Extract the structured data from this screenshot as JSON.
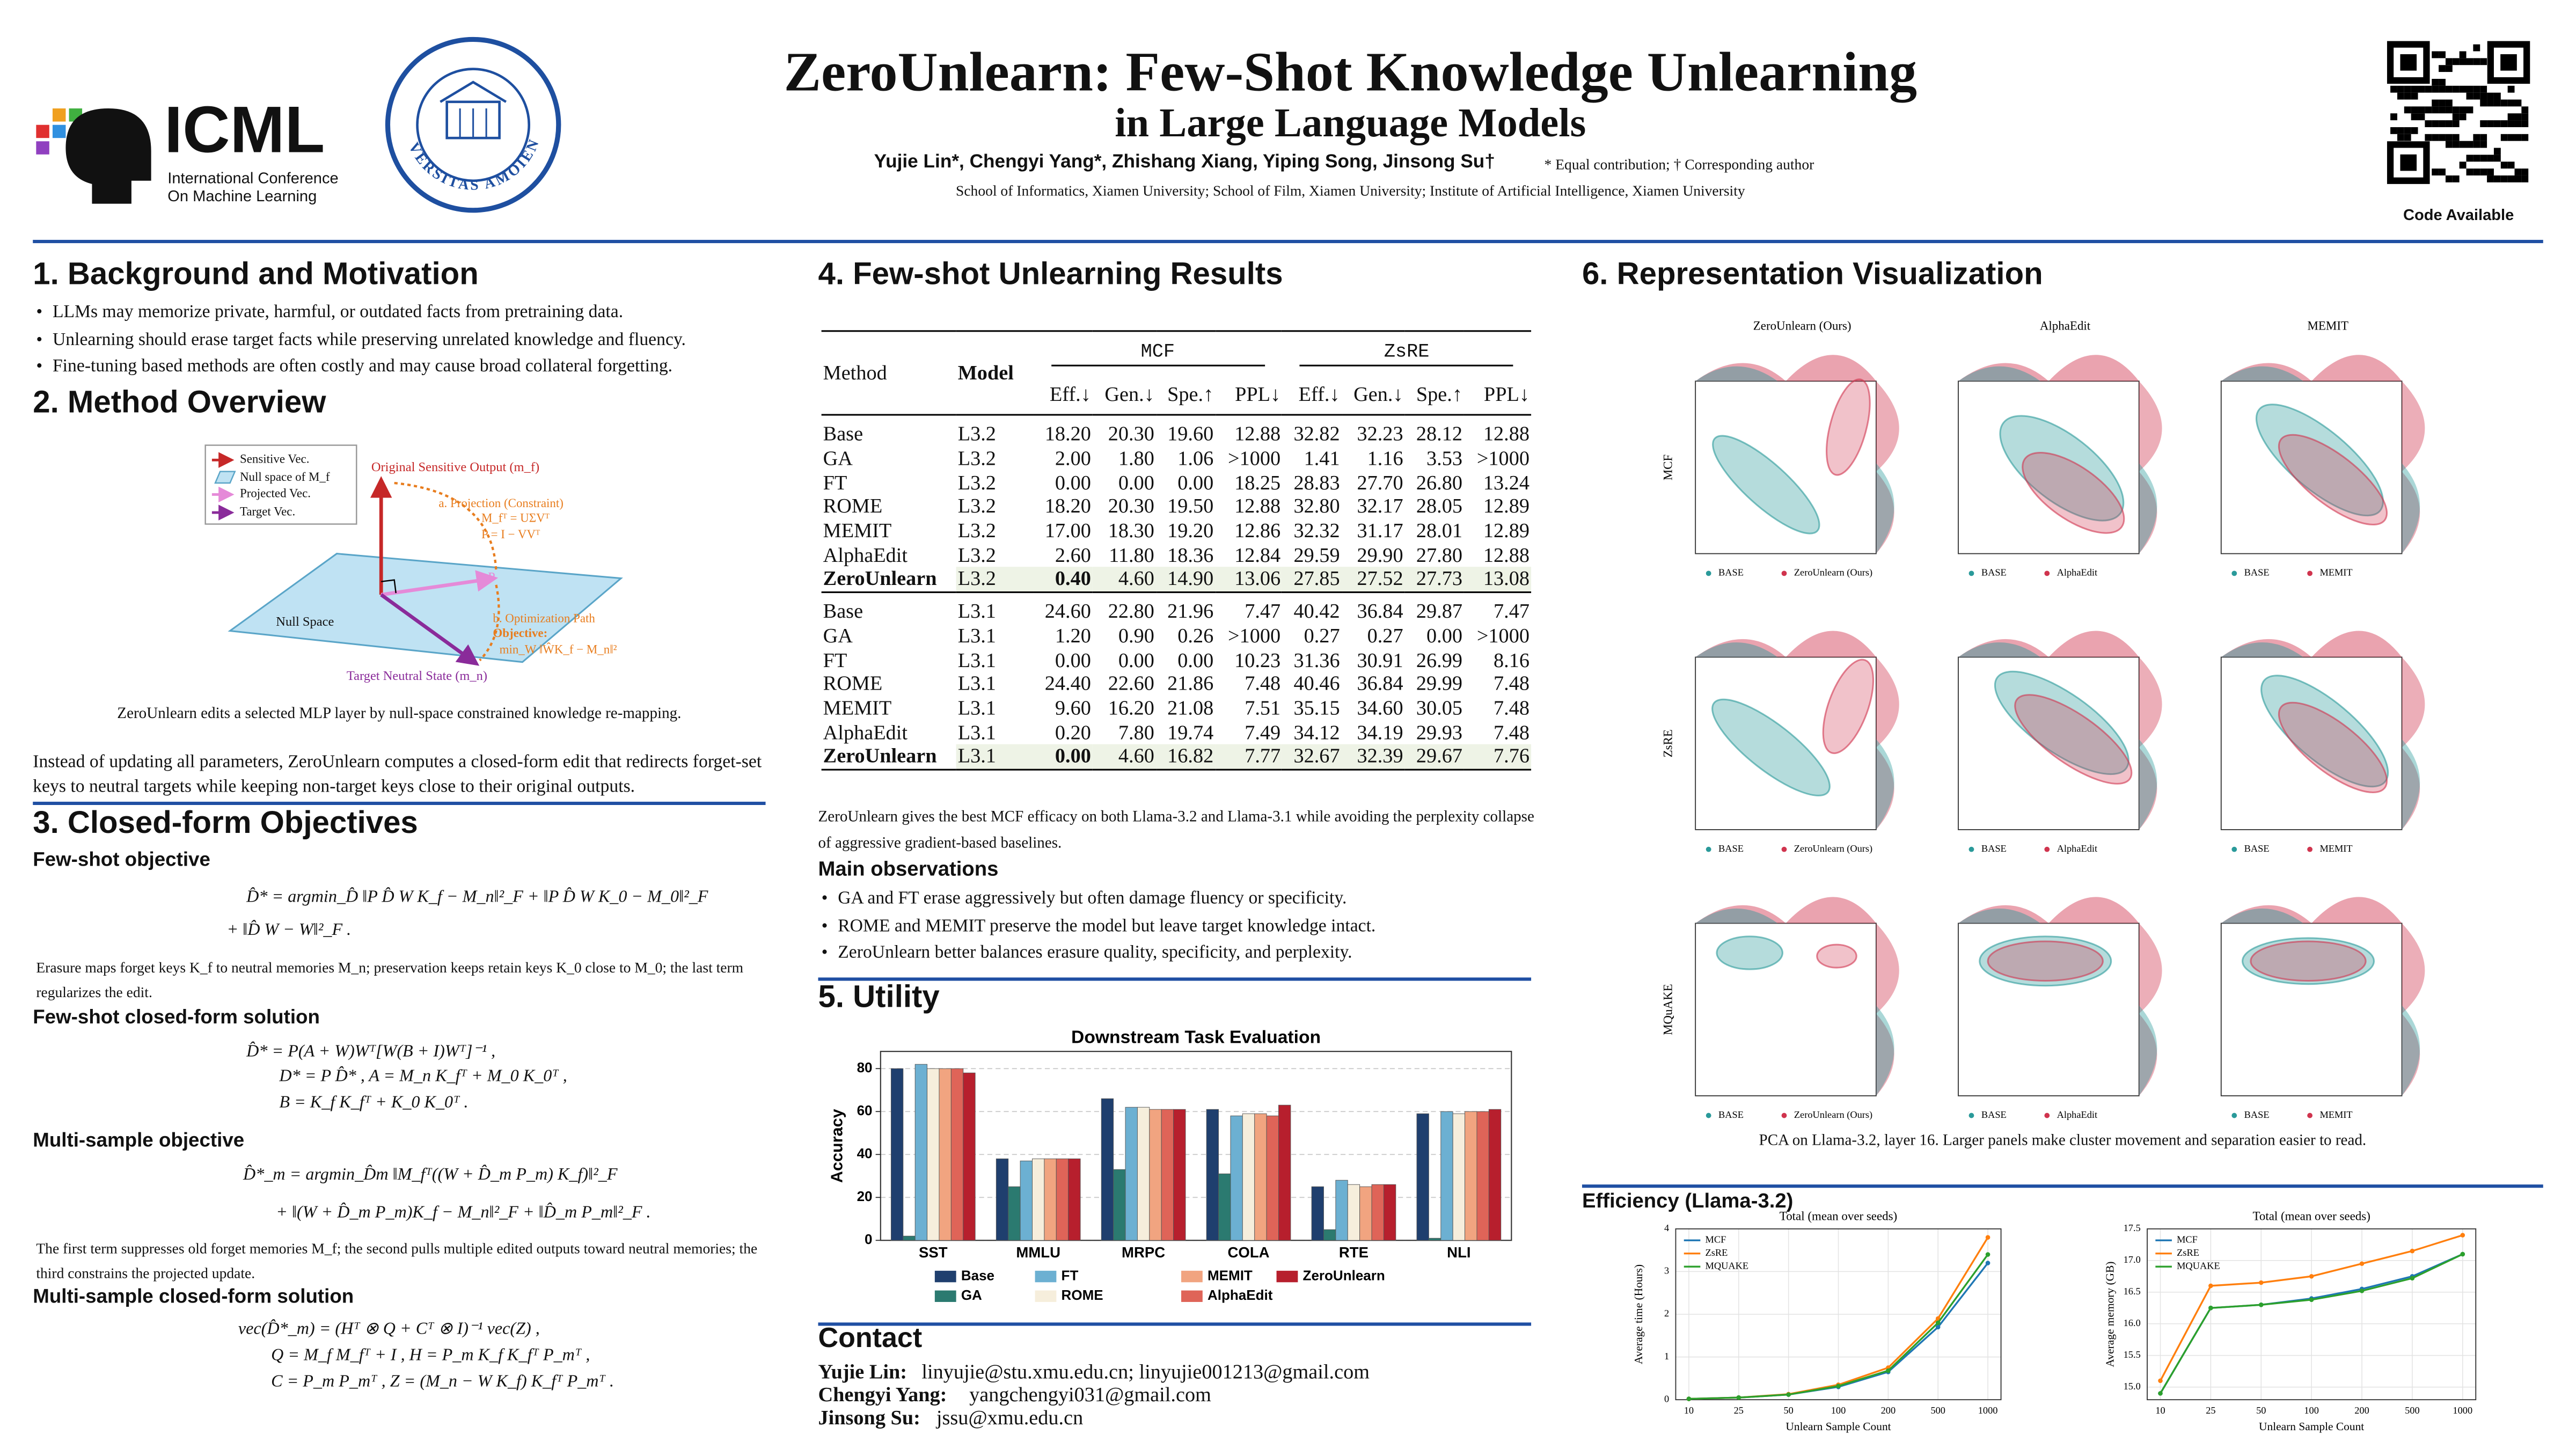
{
  "header": {
    "logo_text": "ICML",
    "logo_line1": "International Conference",
    "logo_line2": "On Machine Learning",
    "seal_text": "UNIVERSITAS AMOIENSIS",
    "title": "ZeroUnlearn: Few-Shot Knowledge Unlearning",
    "subtitle": "in Large Language Models",
    "authors": "Yujie Lin*, Chengyi Yang*, Zhishang Xiang, Yiping Song, Jinsong Su†",
    "note": "* Equal contribution; † Corresponding author",
    "affiliations": "School of Informatics, Xiamen University; School of Film, Xiamen University; Institute of Artificial Intelligence, Xiamen University",
    "code_label": "Code Available"
  },
  "background": {
    "title": "1. Background and Motivation",
    "bullets": [
      "LLMs may memorize private, harmful, or outdated facts from pretraining data.",
      "Unlearning should erase target facts while preserving unrelated knowledge and fluency.",
      "Fine-tuning based methods are often costly and may cause broad collateral forgetting."
    ]
  },
  "method": {
    "title": "2. Method Overview",
    "diagram": {
      "legend": [
        "Sensitive Vec.",
        "Null space of M_f",
        "Projected Vec.",
        "Target Vec."
      ],
      "original": "Original Sensitive Output (m_f)",
      "projection": "a. Projection (Constraint)",
      "svd": "M_fᵀ = UΣVᵀ",
      "projector": "P = I − VVᵀ",
      "null_space": "Null Space",
      "p_label": "P",
      "optimization": "b. Optimization Path",
      "objective": "Objective:",
      "objective_formula": "min_W ‖ŴK_f − M_n‖²",
      "target": "Target Neutral State (m_n)"
    },
    "caption": "ZeroUnlearn edits a selected MLP layer by null-space constrained knowledge re-mapping.",
    "paragraph": "Instead of updating all parameters, ZeroUnlearn computes a closed-form edit that redirects forget-set keys to neutral targets while keeping non-target keys close to their original outputs."
  },
  "objectives": {
    "title": "3. Closed-form Objectives",
    "blocks": [
      {
        "heading": "Few-shot objective",
        "lines": [
          "D̂* = argmin_D̂ ‖P D̂ W K_f − M_n‖²_F + ‖P D̂ W K_0 − M_0‖²_F",
          "+ ‖D̂ W − W‖²_F ."
        ],
        "note": "Erasure maps forget keys K_f to neutral memories M_n; preservation keeps retain keys K_0 close to M_0; the last term regularizes the edit."
      },
      {
        "heading": "Few-shot closed-form solution",
        "lines": [
          "D̂* = P(A + W)Wᵀ[W(B + I)Wᵀ]⁻¹ ,",
          "D* = P D̂* ,   A = M_n K_fᵀ + M_0 K_0ᵀ ,",
          "B = K_f K_fᵀ + K_0 K_0ᵀ ."
        ]
      },
      {
        "heading": "Multi-sample objective",
        "lines": [
          "D̂*_m = argmin_D̂m ‖M_fᵀ((W + D̂_m P_m) K_f)‖²_F",
          "+ ‖(W + D̂_m P_m)K_f − M_n‖²_F + ‖D̂_m P_m‖²_F ."
        ],
        "note": "The first term suppresses old forget memories M_f; the second pulls multiple edited outputs toward neutral memories; the third constrains the projected update."
      },
      {
        "heading": "Multi-sample closed-form solution",
        "lines": [
          "vec(D̂*_m) = (Hᵀ ⊗ Q + Cᵀ ⊗ I)⁻¹ vec(Z) ,",
          "Q = M_f M_fᵀ + I ,   H = P_m K_f K_fᵀ P_mᵀ ,",
          "C = P_m P_mᵀ ,   Z = (M_n − W K_f) K_fᵀ P_mᵀ ."
        ]
      }
    ]
  },
  "results": {
    "title": "4. Few-shot Unlearning Results",
    "table": {
      "method_header": "Method",
      "model_header": "Model",
      "groups": [
        "MCF",
        "ZsRE"
      ],
      "metrics": [
        "Eff.↓",
        "Gen.↓",
        "Spe.↑",
        "PPL↓"
      ],
      "blocks": [
        {
          "rows": [
            [
              "Base",
              "L3.2",
              "18.20",
              "20.30",
              "19.60",
              "12.88",
              "32.82",
              "32.23",
              "28.12",
              "12.88"
            ],
            [
              "GA",
              "L3.2",
              "2.00",
              "1.80",
              "1.06",
              ">1000",
              "1.41",
              "1.16",
              "3.53",
              ">1000"
            ],
            [
              "FT",
              "L3.2",
              "0.00",
              "0.00",
              "0.00",
              "18.25",
              "28.83",
              "27.70",
              "26.80",
              "13.24"
            ],
            [
              "ROME",
              "L3.2",
              "18.20",
              "20.30",
              "19.50",
              "12.88",
              "32.80",
              "32.17",
              "28.05",
              "12.89"
            ],
            [
              "MEMIT",
              "L3.2",
              "17.00",
              "18.30",
              "19.20",
              "12.86",
              "32.32",
              "31.17",
              "28.01",
              "12.89"
            ],
            [
              "AlphaEdit",
              "L3.2",
              "2.60",
              "11.80",
              "18.36",
              "12.84",
              "29.59",
              "29.90",
              "27.80",
              "12.88"
            ],
            [
              "ZeroUnlearn",
              "L3.2",
              "0.40",
              "4.60",
              "14.90",
              "13.06",
              "27.85",
              "27.52",
              "27.73",
              "13.08"
            ]
          ]
        },
        {
          "rows": [
            [
              "Base",
              "L3.1",
              "24.60",
              "22.80",
              "21.96",
              "7.47",
              "40.42",
              "36.84",
              "29.87",
              "7.47"
            ],
            [
              "GA",
              "L3.1",
              "1.20",
              "0.90",
              "0.26",
              ">1000",
              "0.27",
              "0.27",
              "0.00",
              ">1000"
            ],
            [
              "FT",
              "L3.1",
              "0.00",
              "0.00",
              "0.00",
              "10.23",
              "31.36",
              "30.91",
              "26.99",
              "8.16"
            ],
            [
              "ROME",
              "L3.1",
              "24.40",
              "22.60",
              "21.86",
              "7.48",
              "40.46",
              "36.84",
              "29.99",
              "7.48"
            ],
            [
              "MEMIT",
              "L3.1",
              "9.60",
              "16.20",
              "21.08",
              "7.51",
              "35.15",
              "34.60",
              "30.05",
              "7.48"
            ],
            [
              "AlphaEdit",
              "L3.1",
              "0.20",
              "7.80",
              "19.74",
              "7.49",
              "34.12",
              "34.19",
              "29.93",
              "7.48"
            ],
            [
              "ZeroUnlearn",
              "L3.1",
              "0.00",
              "4.60",
              "16.82",
              "7.77",
              "32.67",
              "32.39",
              "29.67",
              "7.76"
            ]
          ]
        }
      ]
    },
    "caption": "ZeroUnlearn gives the best MCF efficacy on both Llama-3.2 and Llama-3.1 while avoiding the perplexity collapse of aggressive gradient-based baselines.",
    "observations_title": "Main observations",
    "observations": [
      "GA and FT erase aggressively but often damage fluency or specificity.",
      "ROME and MEMIT preserve the model but leave target knowledge intact.",
      "ZeroUnlearn better balances erasure quality, specificity, and perplexity."
    ]
  },
  "utility": {
    "title": "5. Utility"
  },
  "contact": {
    "title": "Contact",
    "people": [
      {
        "name": "Yujie Lin:",
        "email": "linyujie@stu.xmu.edu.cn; linyujie001213@gmail.com"
      },
      {
        "name": "Chengyi Yang:",
        "email": "yangchengyi031@gmail.com"
      },
      {
        "name": "Jinsong Su:",
        "email": "jssu@xmu.edu.cn"
      }
    ]
  },
  "visualization": {
    "title": "6. Representation Visualization",
    "columns": [
      "ZeroUnlearn (Ours)",
      "AlphaEdit",
      "MEMIT"
    ],
    "rows": [
      "MCF",
      "ZsRE",
      "MQuAKE"
    ],
    "base_label": "BASE",
    "caption": "PCA on Llama-3.2, layer 16.  Larger panels make cluster movement and separation easier to read."
  },
  "efficiency": {
    "title": "Efficiency (Llama-3.2)"
  },
  "chart_data": [
    {
      "type": "bar",
      "title": "Downstream Task Evaluation",
      "y_label": "Accuracy",
      "categories": [
        "SST",
        "MMLU",
        "MRPC",
        "COLA",
        "RTE",
        "NLI"
      ],
      "series": [
        {
          "name": "Base",
          "color": "#1f3f6e",
          "values": [
            80,
            38,
            66,
            61,
            25,
            59
          ]
        },
        {
          "name": "GA",
          "color": "#2b7a70",
          "values": [
            2,
            25,
            33,
            31,
            5,
            1
          ]
        },
        {
          "name": "FT",
          "color": "#6cb0d2",
          "values": [
            82,
            37,
            62,
            58,
            28,
            60
          ]
        },
        {
          "name": "ROME",
          "color": "#f6eedc",
          "values": [
            80,
            38,
            62,
            59,
            26,
            59
          ]
        },
        {
          "name": "MEMIT",
          "color": "#f1a480",
          "values": [
            80,
            38,
            61,
            59,
            25,
            60
          ]
        },
        {
          "name": "AlphaEdit",
          "color": "#df6458",
          "values": [
            80,
            38,
            61,
            58,
            26,
            60
          ]
        },
        {
          "name": "ZeroUnlearn",
          "color": "#b71f2d",
          "values": [
            78,
            38,
            61,
            63,
            26,
            61
          ]
        }
      ],
      "ylim": [
        0,
        88
      ],
      "yticks": [
        0,
        20,
        40,
        60,
        80
      ],
      "grid": true
    },
    {
      "type": "line",
      "title": "Total (mean over seeds)",
      "x_label": "Unlearn Sample Count",
      "y_label": "Average time (Hours)",
      "categories": [
        "10",
        "25",
        "50",
        "100",
        "200",
        "500",
        "1000"
      ],
      "series": [
        {
          "name": "MCF",
          "color": "#1f77b4",
          "values": [
            0.02,
            0.05,
            0.12,
            0.3,
            0.65,
            1.7,
            3.2
          ]
        },
        {
          "name": "ZsRE",
          "color": "#ff7f0e",
          "values": [
            0.02,
            0.05,
            0.13,
            0.35,
            0.75,
            1.9,
            3.8
          ]
        },
        {
          "name": "MQUAKE",
          "color": "#2ca02c",
          "values": [
            0.02,
            0.05,
            0.12,
            0.32,
            0.68,
            1.8,
            3.4
          ]
        }
      ],
      "ylim": [
        0,
        4
      ],
      "yticks": [
        0,
        1,
        2,
        3,
        4
      ],
      "grid": true
    },
    {
      "type": "line",
      "title": "Total (mean over seeds)",
      "x_label": "Unlearn Sample Count",
      "y_label": "Average memory (GB)",
      "categories": [
        "10",
        "25",
        "50",
        "100",
        "200",
        "500",
        "1000"
      ],
      "series": [
        {
          "name": "MCF",
          "color": "#1f77b4",
          "values": [
            14.9,
            16.25,
            16.3,
            16.4,
            16.55,
            16.75,
            17.1
          ]
        },
        {
          "name": "ZsRE",
          "color": "#ff7f0e",
          "values": [
            15.1,
            16.6,
            16.65,
            16.75,
            16.95,
            17.15,
            17.4
          ]
        },
        {
          "name": "MQUAKE",
          "color": "#2ca02c",
          "values": [
            14.9,
            16.25,
            16.3,
            16.38,
            16.52,
            16.72,
            17.1
          ]
        }
      ],
      "ylim": [
        14.8,
        17.5
      ],
      "yticks": [
        {
          "value": 15,
          "label": "15.0"
        },
        15.5,
        {
          "value": 16,
          "label": "16.0"
        },
        16.5,
        {
          "value": 17,
          "label": "17.0"
        },
        17.5
      ],
      "grid": true
    }
  ]
}
